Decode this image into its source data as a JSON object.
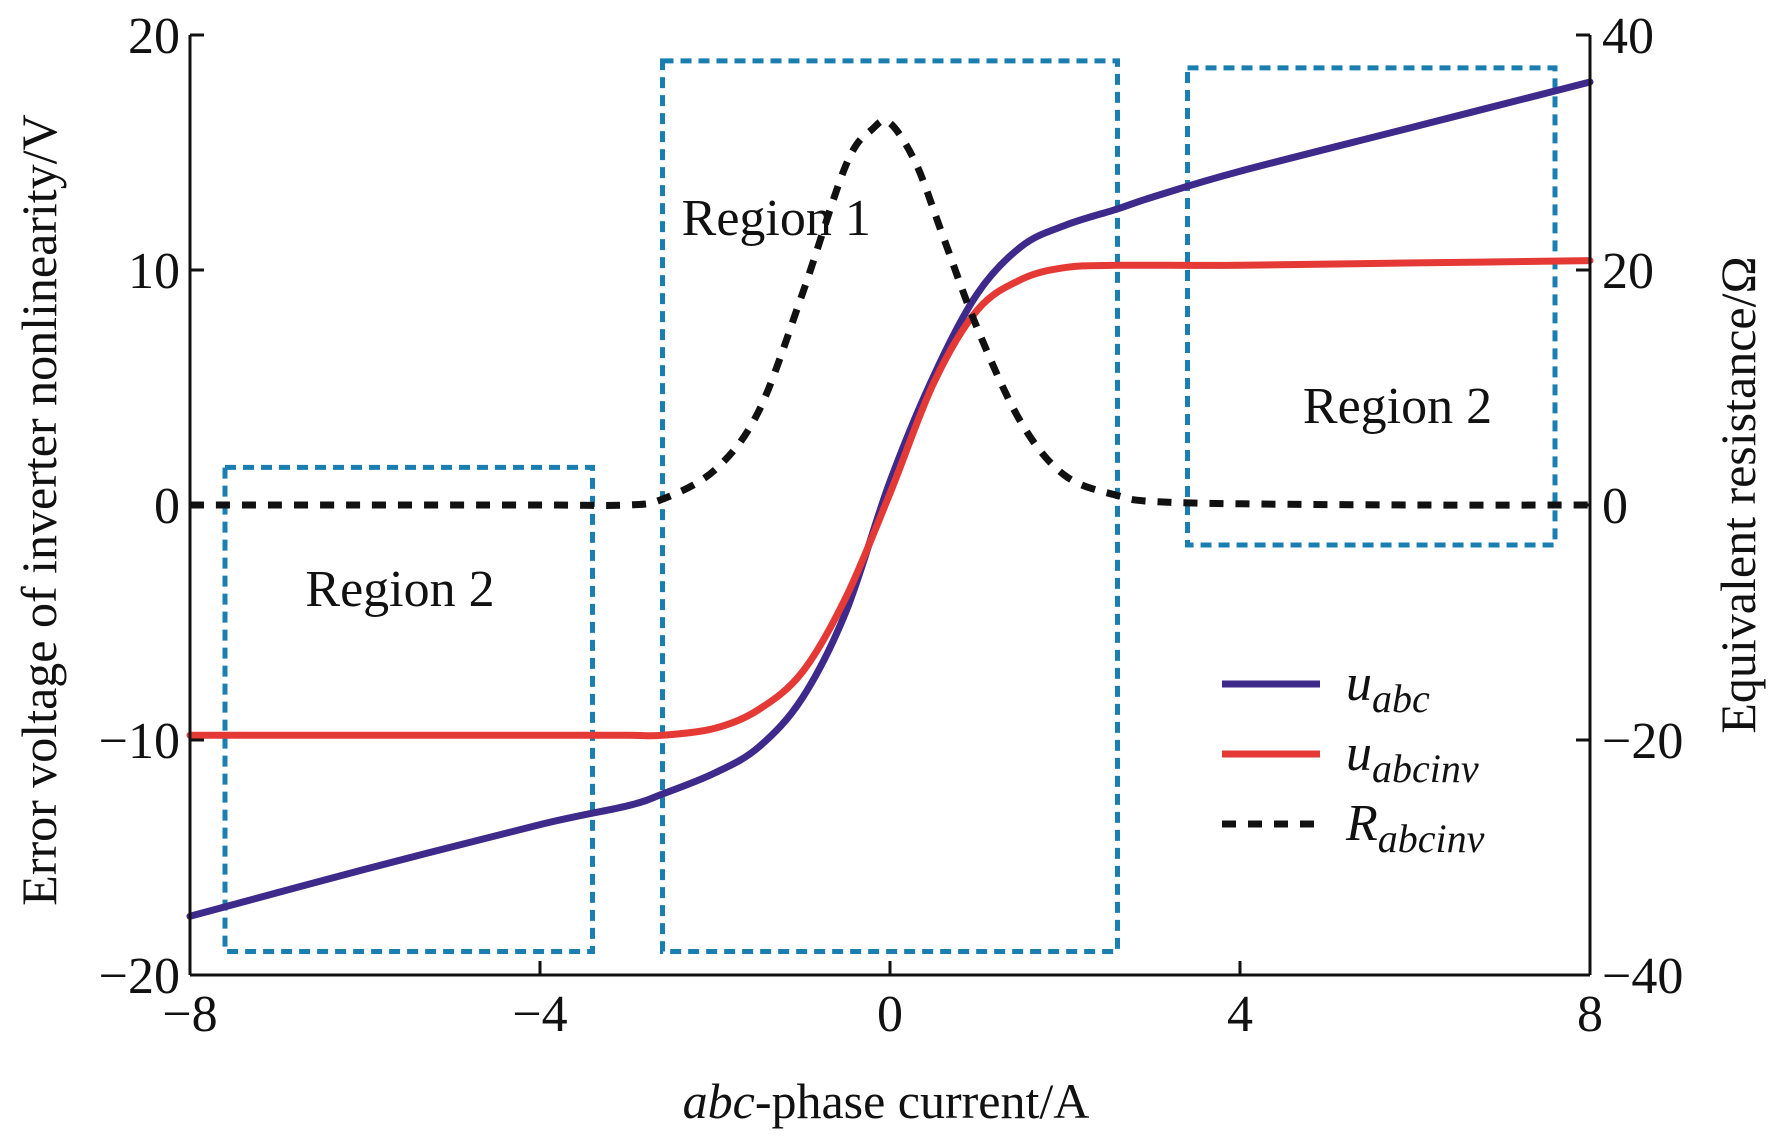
{
  "chart_data": {
    "type": "line",
    "xlabel_italic": "abc",
    "xlabel_rest": "-phase current/A",
    "ylabel_left": "Error voltage of inverter nonlinearity/V",
    "ylabel_right": "Equivalent resistance/Ω",
    "xlim": [
      -8,
      8
    ],
    "ylim_left": [
      -20,
      20
    ],
    "ylim_right": [
      -40,
      40
    ],
    "x_ticks": [
      -8,
      -4,
      0,
      4,
      8
    ],
    "x_tick_labels": [
      "−8",
      "−4",
      "0",
      "4",
      "8"
    ],
    "y_left_ticks": [
      -20,
      -10,
      0,
      10,
      20
    ],
    "y_left_tick_labels": [
      "−20",
      "−10",
      "0",
      "10",
      "20"
    ],
    "y_right_ticks": [
      -40,
      -20,
      0,
      20,
      40
    ],
    "y_right_tick_labels": [
      "−40",
      "−20",
      "0",
      "20",
      "40"
    ],
    "grid": false,
    "legend_position": "bottom-right",
    "series": [
      {
        "name": "u_abc",
        "label_main": "u",
        "label_sub": "abc",
        "axis": "left",
        "style": "solid",
        "color": "#3d2a8a",
        "x": [
          -8,
          -6,
          -4,
          -3,
          -2.6,
          -2,
          -1.5,
          -1,
          -0.5,
          0,
          0.5,
          1,
          1.5,
          2,
          2.6,
          3,
          4,
          6,
          8
        ],
        "y": [
          -17.5,
          -15.5,
          -13.6,
          -12.8,
          -12.3,
          -11.4,
          -10.3,
          -8.2,
          -4.5,
          1.0,
          5.5,
          9.0,
          11.0,
          11.9,
          12.6,
          13.1,
          14.2,
          16.1,
          18.0
        ]
      },
      {
        "name": "u_abcinv",
        "label_main": "u",
        "label_sub": "abcinv",
        "axis": "left",
        "style": "solid",
        "color": "#e53935",
        "x": [
          -8,
          -6,
          -4,
          -3,
          -2.6,
          -2,
          -1.5,
          -1,
          -0.5,
          0,
          0.5,
          1,
          1.5,
          2,
          2.6,
          4,
          6,
          8
        ],
        "y": [
          -9.8,
          -9.8,
          -9.8,
          -9.8,
          -9.8,
          -9.5,
          -8.7,
          -7.1,
          -3.9,
          0.5,
          5.2,
          8.3,
          9.6,
          10.1,
          10.2,
          10.2,
          10.3,
          10.4
        ]
      },
      {
        "name": "R_abcinv",
        "label_main": "R",
        "label_sub": "abcinv",
        "axis": "right",
        "style": "dashed",
        "color": "#111111",
        "x": [
          -8,
          -6,
          -4,
          -3,
          -2.6,
          -2,
          -1.5,
          -1,
          -0.5,
          -0.2,
          0,
          0.3,
          0.6,
          1,
          1.5,
          2,
          2.6,
          3,
          4,
          6,
          8
        ],
        "y": [
          0,
          0,
          0,
          0,
          0.5,
          3,
          8,
          18,
          29,
          32,
          32.5,
          29,
          23,
          15,
          7,
          2.5,
          0.8,
          0.3,
          0.1,
          0,
          0
        ]
      }
    ],
    "annotations": [
      {
        "text": "Region 1",
        "x": -1.3,
        "y": 11.5
      },
      {
        "text": "Region 2",
        "x": -5.6,
        "y": -4.3
      },
      {
        "text": "Region 2",
        "x": 5.8,
        "y": 3.5
      }
    ],
    "regions": [
      {
        "x0": -7.6,
        "x1": -3.4,
        "y0": -19.0,
        "y1": 1.6
      },
      {
        "x0": -2.6,
        "x1": 2.6,
        "y0": -19.0,
        "y1": 18.9
      },
      {
        "x0": 3.4,
        "x1": 7.6,
        "y0": -1.7,
        "y1": 18.6
      }
    ],
    "region_color": "#1a7fb0"
  }
}
